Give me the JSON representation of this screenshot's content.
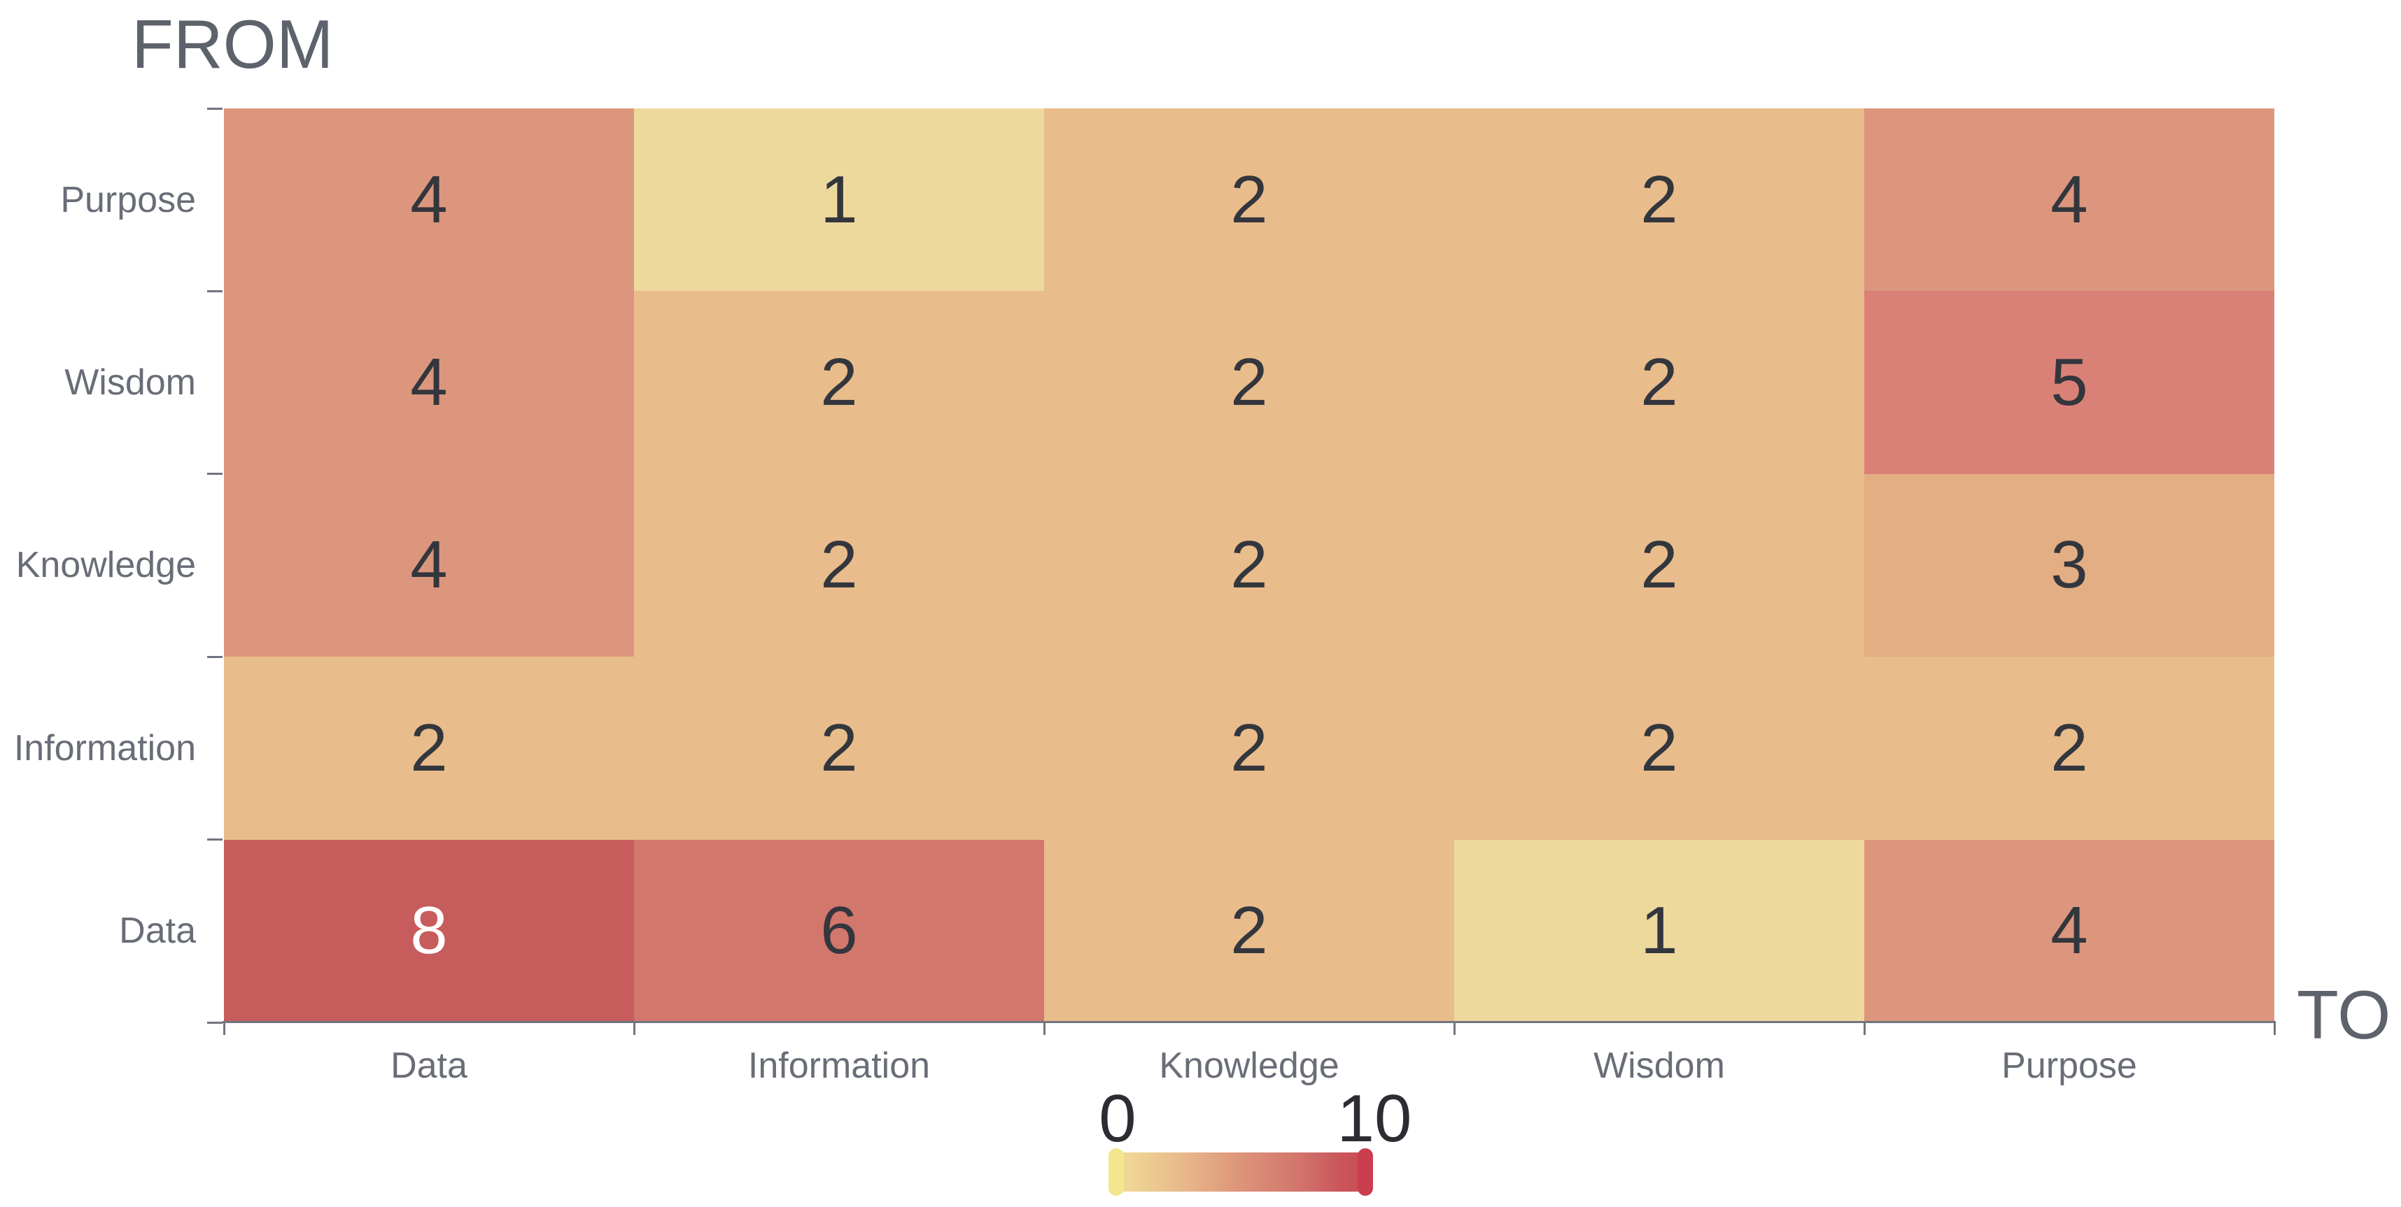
{
  "chart": {
    "from_label": "FROM",
    "to_label": "TO",
    "legend": {
      "min_label": "0",
      "max_label": "10"
    }
  },
  "chart_data": {
    "type": "heatmap",
    "y_axis_title": "FROM",
    "x_axis_title": "TO",
    "rows_top_to_bottom": [
      "Purpose",
      "Wisdom",
      "Knowledge",
      "Information",
      "Data"
    ],
    "columns_left_to_right": [
      "Data",
      "Information",
      "Knowledge",
      "Wisdom",
      "Purpose"
    ],
    "values": [
      [
        4,
        1,
        2,
        2,
        4
      ],
      [
        4,
        2,
        2,
        2,
        5
      ],
      [
        4,
        2,
        2,
        2,
        3
      ],
      [
        2,
        2,
        2,
        2,
        2
      ],
      [
        8,
        6,
        2,
        1,
        4
      ]
    ],
    "color_scale": {
      "min": 0,
      "max": 10,
      "min_color": "#f1e09a",
      "max_color": "#c84a52"
    },
    "value_colors": {
      "1": "#eed99d",
      "2": "#e9bc8c",
      "3": "#e3ae84",
      "4": "#dc967d",
      "5": "#da8177",
      "6": "#d2776c",
      "8": "#c75c5c"
    },
    "value_text_colors": {
      "default": "#33363c",
      "8": "#ffffff"
    },
    "legend_position": "bottom-center",
    "grid_lines": false
  },
  "colors": {
    "axis_label": "#696d78",
    "axis_title": "#5d626c",
    "legend_label": "#2b2d32",
    "axis_line": "#71757f",
    "background": "#ffffff"
  }
}
